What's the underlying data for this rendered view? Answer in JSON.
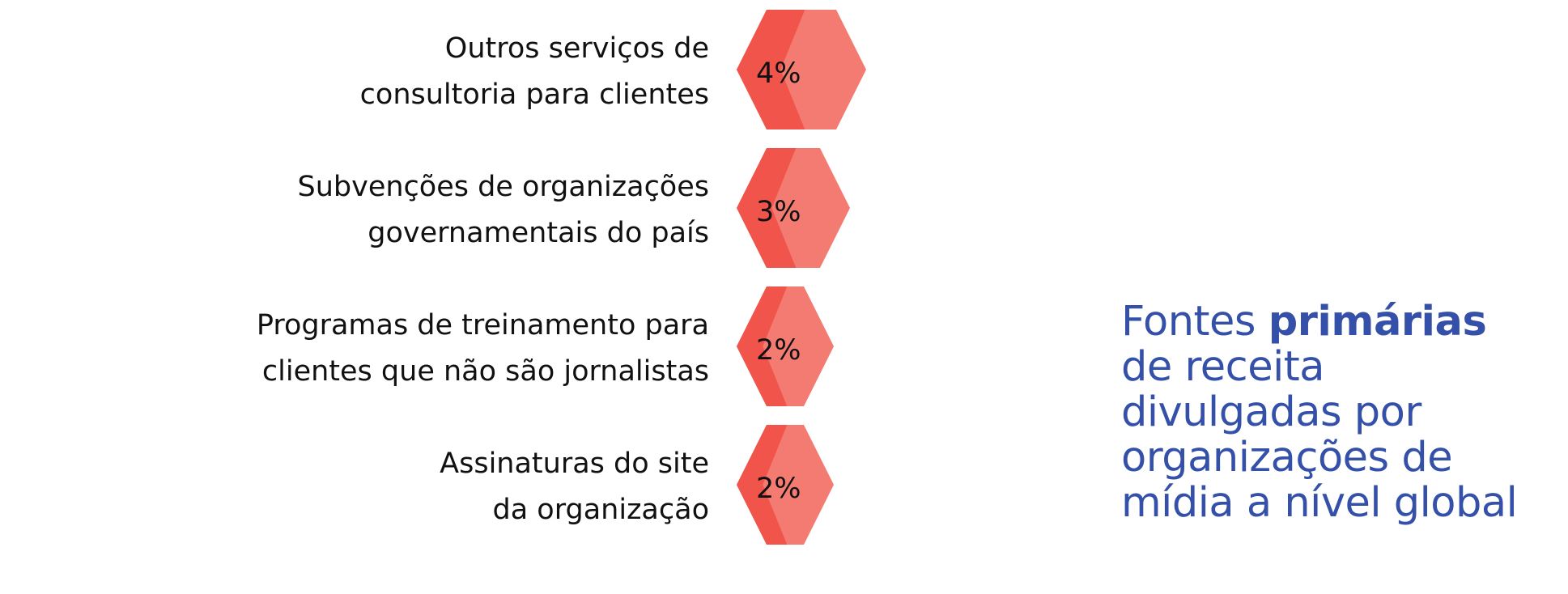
{
  "chart_data": {
    "type": "bar",
    "categories": [
      [
        "Outros serviços de",
        "consultoria para clientes"
      ],
      [
        "Subvenções de organizações",
        "governamentais do país"
      ],
      [
        "Programas de treinamento para",
        "clientes que não são jornalistas"
      ],
      [
        "Assinaturas do site",
        "da organização"
      ]
    ],
    "values": [
      4,
      3,
      2,
      2
    ],
    "value_labels": [
      "4%",
      "3%",
      "2%",
      "2%"
    ],
    "unit": "%",
    "mark_shape": "hexagon",
    "colors": {
      "mark_dark": "#f0544a",
      "mark_light": "#f47b72",
      "title": "#3450a8"
    }
  },
  "title": {
    "line1_normal": "Fontes ",
    "line1_bold": "primárias",
    "line2": "de receita",
    "line3": "divulgadas por",
    "line4": "organizações de",
    "line5": "mídia a nível global"
  }
}
